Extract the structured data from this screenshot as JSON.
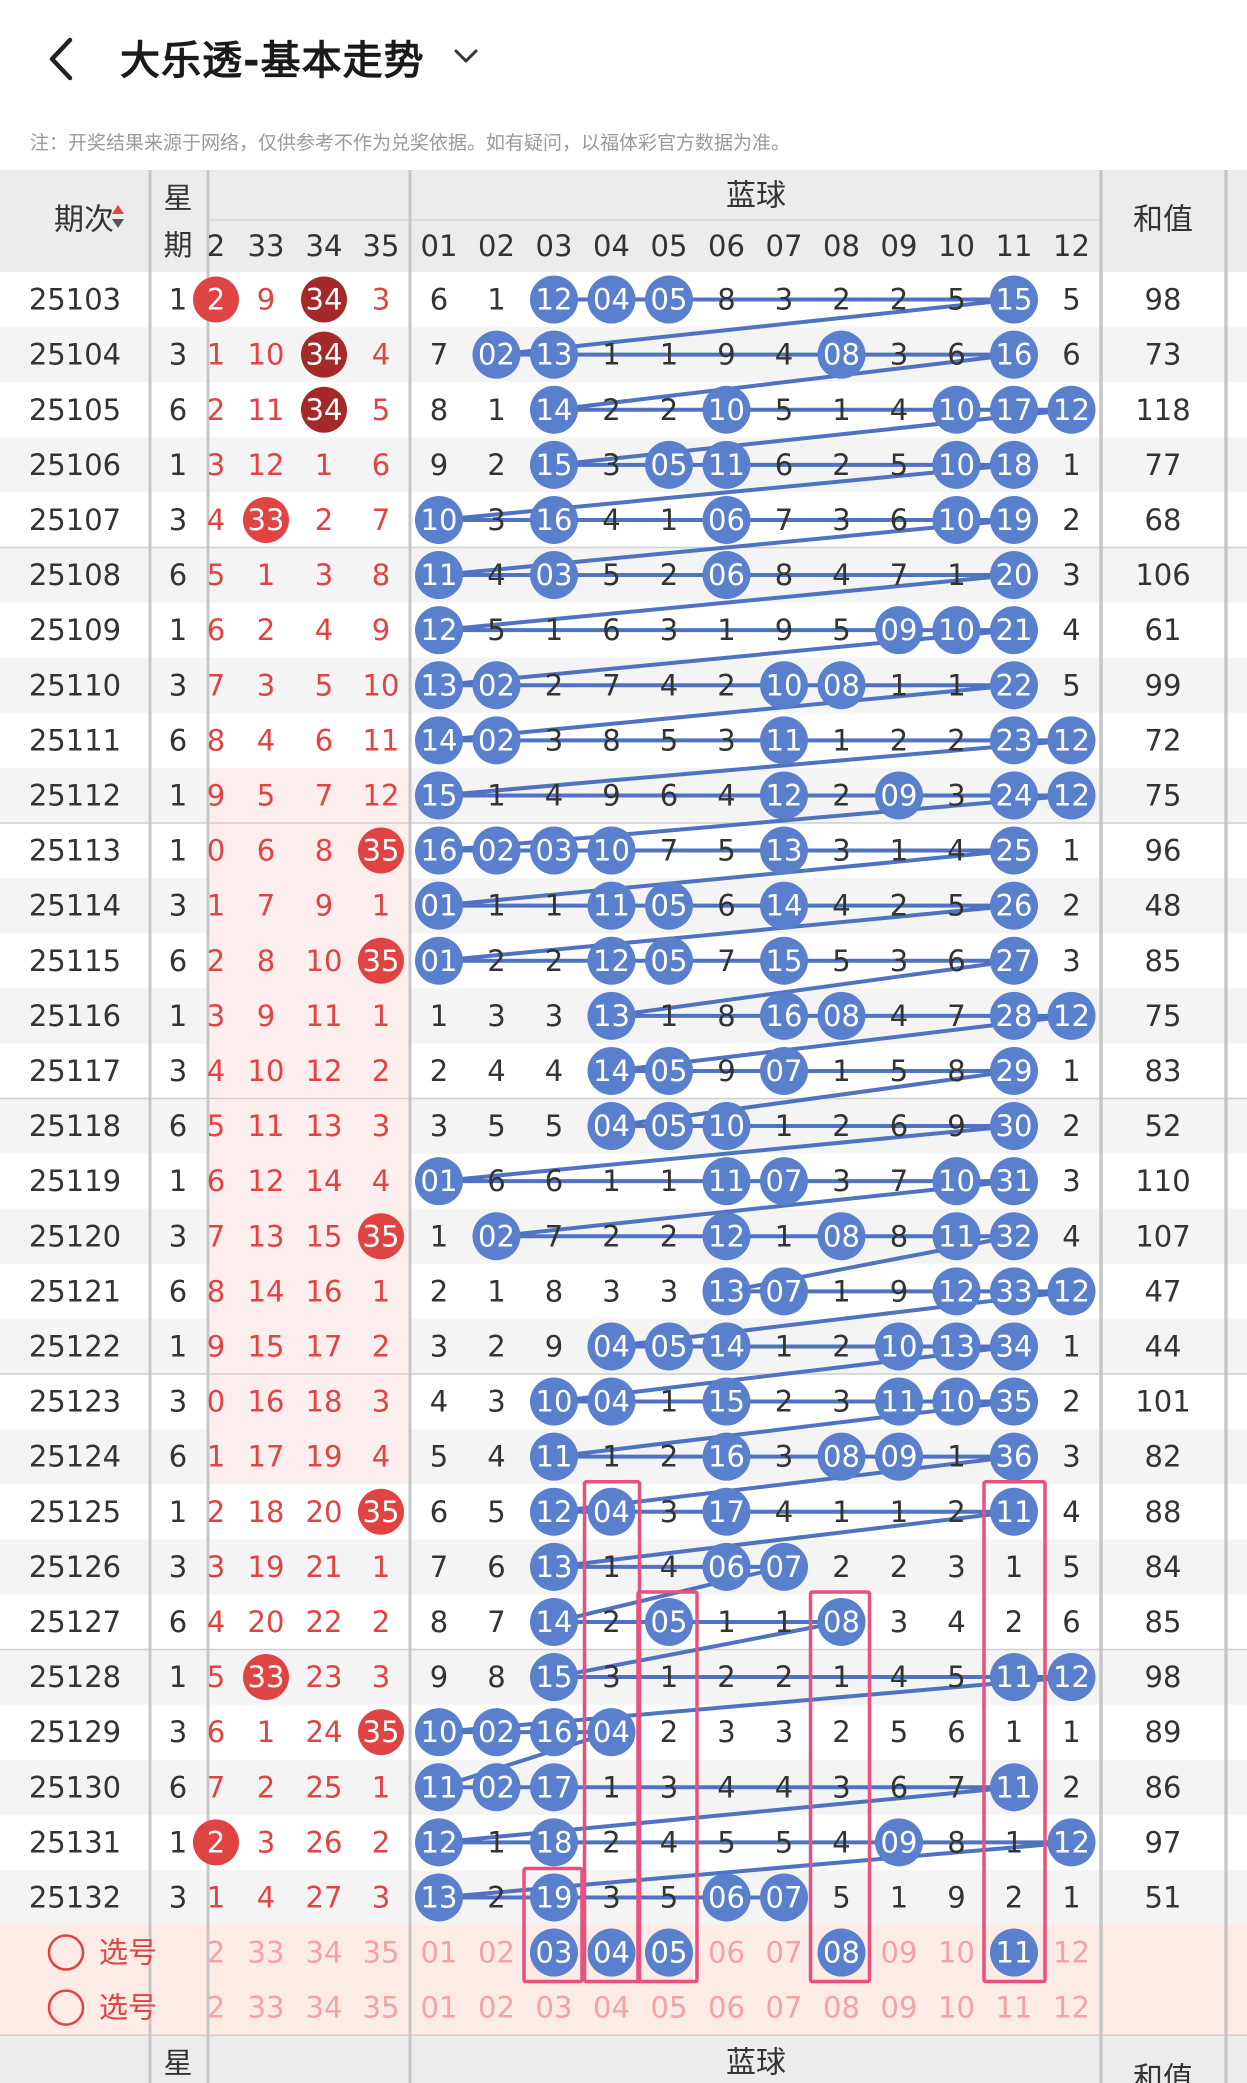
{
  "header": {
    "title": "大乐透-基本走势"
  },
  "notice": "注：开奖结果来源于网络，仅供参考不作为兑奖依据。如有疑问，以福体彩官方数据为准。",
  "columns": {
    "issue": "期次",
    "week_top": "星",
    "week_bottom": "期",
    "blue_group": "蓝球",
    "sum": "和值"
  },
  "front_cols": [
    "2",
    "33",
    "34",
    "35"
  ],
  "blue_cols": [
    "01",
    "02",
    "03",
    "04",
    "05",
    "06",
    "07",
    "08",
    "09",
    "10",
    "11",
    "12"
  ],
  "select_label": "选号",
  "rows": [
    {
      "issue": "25103",
      "week": "1",
      "front": [
        "2",
        "9",
        "34",
        "3"
      ],
      "fb": [
        0,
        2
      ],
      "blue": [
        "6",
        "1",
        "12",
        "04",
        "05",
        "8",
        "3",
        "2",
        "2",
        "5",
        "15",
        "5"
      ],
      "sum": "98",
      "shade": false
    },
    {
      "issue": "25104",
      "week": "3",
      "front": [
        "1",
        "10",
        "34",
        "4"
      ],
      "fb": [
        2
      ],
      "blue": [
        "7",
        "02",
        "13",
        "1",
        "1",
        "9",
        "4",
        "08",
        "3",
        "6",
        "16",
        "6"
      ],
      "sum": "73",
      "shade": true
    },
    {
      "issue": "25105",
      "week": "6",
      "front": [
        "2",
        "11",
        "34",
        "5"
      ],
      "fb": [
        2
      ],
      "blue": [
        "8",
        "1",
        "14",
        "2",
        "2",
        "10",
        "5",
        "1",
        "4",
        "10",
        "17",
        "12"
      ],
      "sum": "118",
      "shade": false
    },
    {
      "issue": "25106",
      "week": "1",
      "front": [
        "3",
        "12",
        "1",
        "6"
      ],
      "fb": [],
      "blue": [
        "9",
        "2",
        "15",
        "3",
        "05",
        "11",
        "6",
        "2",
        "5",
        "10",
        "18",
        "1"
      ],
      "sum": "77",
      "shade": true
    },
    {
      "issue": "25107",
      "week": "3",
      "front": [
        "4",
        "33",
        "2",
        "7"
      ],
      "fb": [
        1
      ],
      "blue": [
        "10",
        "3",
        "16",
        "4",
        "1",
        "06",
        "7",
        "3",
        "6",
        "10",
        "19",
        "2"
      ],
      "sum": "68",
      "shade": false
    },
    {
      "issue": "25108",
      "week": "6",
      "front": [
        "5",
        "1",
        "3",
        "8"
      ],
      "fb": [],
      "blue": [
        "11",
        "4",
        "03",
        "5",
        "2",
        "06",
        "8",
        "4",
        "7",
        "1",
        "20",
        "3"
      ],
      "sum": "106",
      "shade": true
    },
    {
      "issue": "25109",
      "week": "1",
      "front": [
        "6",
        "2",
        "4",
        "9"
      ],
      "fb": [],
      "blue": [
        "12",
        "5",
        "1",
        "6",
        "3",
        "1",
        "9",
        "5",
        "09",
        "10",
        "21",
        "4"
      ],
      "sum": "61",
      "shade": false
    },
    {
      "issue": "25110",
      "week": "3",
      "front": [
        "7",
        "3",
        "5",
        "10"
      ],
      "fb": [],
      "blue": [
        "13",
        "02",
        "2",
        "7",
        "4",
        "2",
        "10",
        "08",
        "1",
        "1",
        "22",
        "5"
      ],
      "sum": "99",
      "shade": true
    },
    {
      "issue": "25111",
      "week": "6",
      "front": [
        "8",
        "4",
        "6",
        "11"
      ],
      "fb": [],
      "blue": [
        "14",
        "02",
        "3",
        "8",
        "5",
        "3",
        "11",
        "1",
        "2",
        "2",
        "23",
        "12"
      ],
      "sum": "72",
      "shade": false
    },
    {
      "issue": "25112",
      "week": "1",
      "front": [
        "9",
        "5",
        "7",
        "12"
      ],
      "fb": [],
      "blue": [
        "15",
        "1",
        "4",
        "9",
        "6",
        "4",
        "12",
        "2",
        "09",
        "3",
        "24",
        "12"
      ],
      "sum": "75",
      "shade": true
    },
    {
      "issue": "25113",
      "week": "1",
      "front": [
        "0",
        "6",
        "8",
        "35"
      ],
      "fb": [
        3
      ],
      "blue": [
        "16",
        "02",
        "03",
        "10",
        "7",
        "5",
        "13",
        "3",
        "1",
        "4",
        "25",
        "1"
      ],
      "sum": "96",
      "shade": false
    },
    {
      "issue": "25114",
      "week": "3",
      "front": [
        "1",
        "7",
        "9",
        "1"
      ],
      "fb": [],
      "blue": [
        "01",
        "1",
        "1",
        "11",
        "05",
        "6",
        "14",
        "4",
        "2",
        "5",
        "26",
        "2"
      ],
      "sum": "48",
      "shade": true
    },
    {
      "issue": "25115",
      "week": "6",
      "front": [
        "2",
        "8",
        "10",
        "35"
      ],
      "fb": [
        3
      ],
      "blue": [
        "01",
        "2",
        "2",
        "12",
        "05",
        "7",
        "15",
        "5",
        "3",
        "6",
        "27",
        "3"
      ],
      "sum": "85",
      "shade": false
    },
    {
      "issue": "25116",
      "week": "1",
      "front": [
        "3",
        "9",
        "11",
        "1"
      ],
      "fb": [],
      "blue": [
        "1",
        "3",
        "3",
        "13",
        "1",
        "8",
        "16",
        "08",
        "4",
        "7",
        "28",
        "12"
      ],
      "sum": "75",
      "shade": true
    },
    {
      "issue": "25117",
      "week": "3",
      "front": [
        "4",
        "10",
        "12",
        "2"
      ],
      "fb": [],
      "blue": [
        "2",
        "4",
        "4",
        "14",
        "05",
        "9",
        "07",
        "1",
        "5",
        "8",
        "29",
        "1"
      ],
      "sum": "83",
      "shade": false
    },
    {
      "issue": "25118",
      "week": "6",
      "front": [
        "5",
        "11",
        "13",
        "3"
      ],
      "fb": [],
      "blue": [
        "3",
        "5",
        "5",
        "04",
        "05",
        "10",
        "1",
        "2",
        "6",
        "9",
        "30",
        "2"
      ],
      "sum": "52",
      "shade": true
    },
    {
      "issue": "25119",
      "week": "1",
      "front": [
        "6",
        "12",
        "14",
        "4"
      ],
      "fb": [],
      "blue": [
        "01",
        "6",
        "6",
        "1",
        "1",
        "11",
        "07",
        "3",
        "7",
        "10",
        "31",
        "3"
      ],
      "sum": "110",
      "shade": false
    },
    {
      "issue": "25120",
      "week": "3",
      "front": [
        "7",
        "13",
        "15",
        "35"
      ],
      "fb": [
        3
      ],
      "blue": [
        "1",
        "02",
        "7",
        "2",
        "2",
        "12",
        "1",
        "08",
        "8",
        "11",
        "32",
        "4"
      ],
      "sum": "107",
      "shade": true
    },
    {
      "issue": "25121",
      "week": "6",
      "front": [
        "8",
        "14",
        "16",
        "1"
      ],
      "fb": [],
      "blue": [
        "2",
        "1",
        "8",
        "3",
        "3",
        "13",
        "07",
        "1",
        "9",
        "12",
        "33",
        "12"
      ],
      "sum": "47",
      "shade": false
    },
    {
      "issue": "25122",
      "week": "1",
      "front": [
        "9",
        "15",
        "17",
        "2"
      ],
      "fb": [],
      "blue": [
        "3",
        "2",
        "9",
        "04",
        "05",
        "14",
        "1",
        "2",
        "10",
        "13",
        "34",
        "1"
      ],
      "sum": "44",
      "shade": true
    },
    {
      "issue": "25123",
      "week": "3",
      "front": [
        "0",
        "16",
        "18",
        "3"
      ],
      "fb": [],
      "blue": [
        "4",
        "3",
        "10",
        "04",
        "1",
        "15",
        "2",
        "3",
        "11",
        "10",
        "35",
        "2"
      ],
      "sum": "101",
      "shade": false
    },
    {
      "issue": "25124",
      "week": "6",
      "front": [
        "1",
        "17",
        "19",
        "4"
      ],
      "fb": [],
      "blue": [
        "5",
        "4",
        "11",
        "1",
        "2",
        "16",
        "3",
        "08",
        "09",
        "1",
        "36",
        "3"
      ],
      "sum": "82",
      "shade": true
    },
    {
      "issue": "25125",
      "week": "1",
      "front": [
        "2",
        "18",
        "20",
        "35"
      ],
      "fb": [
        3
      ],
      "blue": [
        "6",
        "5",
        "12",
        "04",
        "3",
        "17",
        "4",
        "1",
        "1",
        "2",
        "11",
        "4"
      ],
      "sum": "88",
      "shade": false
    },
    {
      "issue": "25126",
      "week": "3",
      "front": [
        "3",
        "19",
        "21",
        "1"
      ],
      "fb": [],
      "blue": [
        "7",
        "6",
        "13",
        "1",
        "4",
        "06",
        "07",
        "2",
        "2",
        "3",
        "1",
        "5"
      ],
      "sum": "84",
      "shade": true
    },
    {
      "issue": "25127",
      "week": "6",
      "front": [
        "4",
        "20",
        "22",
        "2"
      ],
      "fb": [],
      "blue": [
        "8",
        "7",
        "14",
        "2",
        "05",
        "1",
        "1",
        "08",
        "3",
        "4",
        "2",
        "6"
      ],
      "sum": "85",
      "shade": false
    },
    {
      "issue": "25128",
      "week": "1",
      "front": [
        "5",
        "33",
        "23",
        "3"
      ],
      "fb": [
        1
      ],
      "blue": [
        "9",
        "8",
        "15",
        "3",
        "1",
        "2",
        "2",
        "1",
        "4",
        "5",
        "11",
        "12"
      ],
      "sum": "98",
      "shade": true
    },
    {
      "issue": "25129",
      "week": "3",
      "front": [
        "6",
        "1",
        "24",
        "35"
      ],
      "fb": [
        3
      ],
      "blue": [
        "10",
        "02",
        "16",
        "04",
        "2",
        "3",
        "3",
        "2",
        "5",
        "6",
        "1",
        "1"
      ],
      "sum": "89",
      "shade": false
    },
    {
      "issue": "25130",
      "week": "6",
      "front": [
        "7",
        "2",
        "25",
        "1"
      ],
      "fb": [],
      "blue": [
        "11",
        "02",
        "17",
        "1",
        "3",
        "4",
        "4",
        "3",
        "6",
        "7",
        "11",
        "2"
      ],
      "sum": "86",
      "shade": true
    },
    {
      "issue": "25131",
      "week": "1",
      "front": [
        "2",
        "3",
        "26",
        "2"
      ],
      "fb": [
        0
      ],
      "blue": [
        "12",
        "1",
        "18",
        "2",
        "4",
        "5",
        "5",
        "4",
        "09",
        "8",
        "1",
        "12"
      ],
      "sum": "97",
      "shade": false
    },
    {
      "issue": "25132",
      "week": "3",
      "front": [
        "1",
        "4",
        "27",
        "3"
      ],
      "fb": [],
      "blue": [
        "13",
        "2",
        "19",
        "3",
        "5",
        "06",
        "07",
        "5",
        "1",
        "9",
        "2",
        "1"
      ],
      "sum": "51",
      "shade": true
    }
  ],
  "select_rows": [
    {
      "front": [
        "2",
        "33",
        "34",
        "35"
      ],
      "blue": [
        "01",
        "02",
        "03",
        "04",
        "05",
        "06",
        "07",
        "08",
        "09",
        "10",
        "11",
        "12"
      ],
      "selected": [
        2,
        3,
        4,
        7,
        10
      ]
    },
    {
      "front": [
        "2",
        "33",
        "34",
        "35"
      ],
      "blue": [
        "01",
        "02",
        "03",
        "04",
        "05",
        "06",
        "07",
        "08",
        "09",
        "10",
        "11",
        "12"
      ],
      "selected": []
    }
  ],
  "colors": {
    "red": "#e04343",
    "dark_red": "#a5282b",
    "blue_ball": "#5a7fcc",
    "line": "#4f73c0",
    "pink_box": "#e8507e",
    "header_bg": "#ececec",
    "shade_bg": "#f4f4f4",
    "pink_bg": "#fdeeee",
    "select_bg": "#fdebe5",
    "text": "#333333"
  }
}
